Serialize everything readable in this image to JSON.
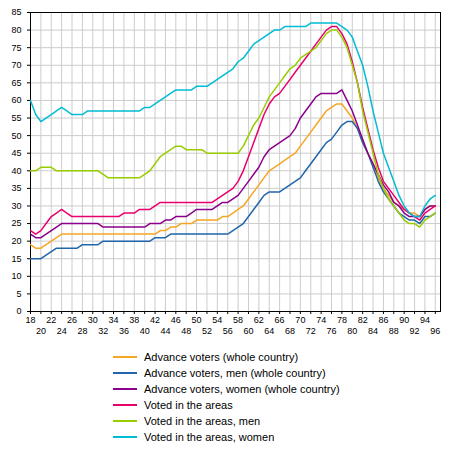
{
  "chart_data": {
    "type": "line",
    "x": [
      18,
      19,
      20,
      21,
      22,
      23,
      24,
      25,
      26,
      27,
      28,
      29,
      30,
      31,
      32,
      33,
      34,
      35,
      36,
      37,
      38,
      39,
      40,
      41,
      42,
      43,
      44,
      45,
      46,
      47,
      48,
      49,
      50,
      51,
      52,
      53,
      54,
      55,
      56,
      57,
      58,
      59,
      60,
      61,
      62,
      63,
      64,
      65,
      66,
      67,
      68,
      69,
      70,
      71,
      72,
      73,
      74,
      75,
      76,
      77,
      78,
      79,
      80,
      81,
      82,
      83,
      84,
      85,
      86,
      87,
      88,
      89,
      90,
      91,
      92,
      93,
      94,
      95,
      96
    ],
    "xlim": [
      18,
      97
    ],
    "xticks": [
      18,
      20,
      22,
      24,
      26,
      28,
      30,
      32,
      34,
      36,
      38,
      40,
      42,
      44,
      46,
      48,
      50,
      52,
      54,
      56,
      58,
      60,
      62,
      64,
      66,
      68,
      70,
      72,
      74,
      76,
      78,
      80,
      82,
      84,
      86,
      88,
      90,
      92,
      94,
      96
    ],
    "ylim": [
      0,
      85
    ],
    "yticks": [
      0,
      5,
      10,
      15,
      20,
      25,
      30,
      35,
      40,
      45,
      50,
      55,
      60,
      65,
      70,
      75,
      80,
      85
    ],
    "grid": true,
    "legend": "bottom",
    "series": [
      {
        "name": "Advance voters (whole country)",
        "color": "#f5a623",
        "values": [
          19,
          18,
          18,
          19,
          20,
          21,
          22,
          22,
          22,
          22,
          22,
          22,
          22,
          22,
          22,
          22,
          22,
          22,
          22,
          22,
          22,
          22,
          22,
          22,
          22,
          23,
          23,
          24,
          24,
          25,
          25,
          25,
          26,
          26,
          26,
          26,
          26,
          27,
          27,
          28,
          29,
          30,
          32,
          34,
          36,
          38,
          40,
          41,
          42,
          43,
          44,
          45,
          47,
          49,
          51,
          53,
          55,
          57,
          58,
          59,
          59,
          57,
          55,
          52,
          48,
          45,
          42,
          38,
          35,
          33,
          31,
          30,
          29,
          28,
          28,
          27,
          29,
          30,
          30
        ]
      },
      {
        "name": "Advance voters, men (whole country)",
        "color": "#2166ac",
        "values": [
          15,
          15,
          15,
          16,
          17,
          18,
          18,
          18,
          18,
          18,
          19,
          19,
          19,
          19,
          20,
          20,
          20,
          20,
          20,
          20,
          20,
          20,
          20,
          20,
          21,
          21,
          21,
          22,
          22,
          22,
          22,
          22,
          22,
          22,
          22,
          22,
          22,
          22,
          22,
          23,
          24,
          25,
          27,
          29,
          31,
          33,
          34,
          34,
          34,
          35,
          36,
          37,
          38,
          40,
          42,
          44,
          46,
          48,
          49,
          51,
          53,
          54,
          54,
          52,
          48,
          45,
          41,
          37,
          34,
          32,
          30,
          28,
          27,
          26,
          26,
          25,
          27,
          27,
          28
        ]
      },
      {
        "name": "Advance voters, women (whole country)",
        "color": "#8B008B",
        "values": [
          22,
          21,
          21,
          22,
          23,
          24,
          25,
          25,
          25,
          25,
          25,
          25,
          25,
          25,
          24,
          24,
          24,
          24,
          24,
          24,
          24,
          24,
          24,
          25,
          25,
          25,
          26,
          26,
          27,
          27,
          27,
          28,
          29,
          29,
          29,
          29,
          30,
          31,
          31,
          32,
          33,
          35,
          37,
          39,
          41,
          44,
          46,
          47,
          48,
          49,
          50,
          52,
          55,
          57,
          59,
          61,
          62,
          62,
          62,
          62,
          63,
          60,
          57,
          53,
          49,
          45,
          42,
          39,
          36,
          34,
          31,
          30,
          28,
          27,
          27,
          27,
          29,
          30,
          30
        ]
      },
      {
        "name": "Voted in the areas",
        "color": "#e8006e",
        "values": [
          23,
          22,
          23,
          25,
          27,
          28,
          29,
          28,
          27,
          27,
          27,
          27,
          27,
          27,
          27,
          27,
          27,
          27,
          28,
          28,
          28,
          29,
          29,
          29,
          30,
          31,
          31,
          31,
          31,
          31,
          31,
          31,
          31,
          31,
          31,
          31,
          32,
          33,
          34,
          35,
          37,
          40,
          44,
          48,
          52,
          56,
          59,
          61,
          62,
          64,
          66,
          68,
          70,
          72,
          74,
          76,
          78,
          80,
          81,
          81,
          79,
          76,
          71,
          65,
          58,
          52,
          46,
          41,
          37,
          35,
          33,
          31,
          29,
          28,
          27,
          26,
          28,
          29,
          30
        ]
      },
      {
        "name": "Voted in the areas, men",
        "color": "#9acd00",
        "values": [
          40,
          40,
          41,
          41,
          41,
          40,
          40,
          40,
          40,
          40,
          40,
          40,
          40,
          40,
          39,
          38,
          38,
          38,
          38,
          38,
          38,
          38,
          39,
          40,
          42,
          44,
          45,
          46,
          47,
          47,
          46,
          46,
          46,
          46,
          45,
          45,
          45,
          45,
          45,
          45,
          45,
          47,
          50,
          53,
          55,
          58,
          61,
          63,
          65,
          67,
          69,
          70,
          72,
          73,
          74,
          75,
          77,
          79,
          80,
          80,
          78,
          75,
          70,
          65,
          57,
          51,
          45,
          39,
          35,
          32,
          30,
          28,
          26,
          25,
          25,
          24,
          26,
          27,
          28
        ]
      },
      {
        "name": "Voted in the areas, women",
        "color": "#00bcd4",
        "values": [
          60,
          56,
          54,
          55,
          56,
          57,
          58,
          57,
          56,
          56,
          56,
          57,
          57,
          57,
          57,
          57,
          57,
          57,
          57,
          57,
          57,
          57,
          58,
          58,
          59,
          60,
          61,
          62,
          63,
          63,
          63,
          63,
          64,
          64,
          64,
          65,
          66,
          67,
          68,
          69,
          71,
          72,
          74,
          76,
          77,
          78,
          79,
          80,
          80,
          81,
          81,
          81,
          81,
          81,
          82,
          82,
          82,
          82,
          82,
          82,
          81,
          80,
          78,
          74,
          70,
          64,
          57,
          51,
          45,
          41,
          37,
          33,
          30,
          28,
          27,
          27,
          30,
          32,
          33
        ]
      }
    ]
  }
}
